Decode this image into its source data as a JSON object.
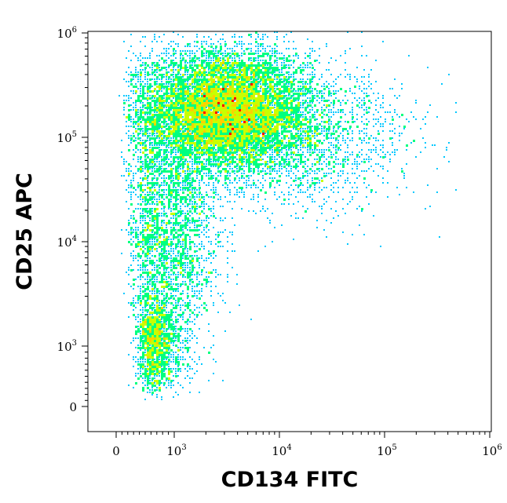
{
  "chart_data": {
    "type": "scatter",
    "style": "flow-cytometry density dot plot (biexponential axes), color = event density: blue low, cyan, green, yellow, red high",
    "xlabel": "CD134 FITC",
    "ylabel": "CD25 APC",
    "x_ticks": [
      {
        "base": "0",
        "exp": ""
      },
      {
        "base": "10",
        "exp": "3"
      },
      {
        "base": "10",
        "exp": "4"
      },
      {
        "base": "10",
        "exp": "5"
      },
      {
        "base": "10",
        "exp": "6"
      }
    ],
    "y_ticks": [
      {
        "base": "0",
        "exp": ""
      },
      {
        "base": "10",
        "exp": "3"
      },
      {
        "base": "10",
        "exp": "4"
      },
      {
        "base": "10",
        "exp": "5"
      },
      {
        "base": "10",
        "exp": "6"
      }
    ],
    "xlim": [
      0,
      1000000
    ],
    "ylim": [
      0,
      1000000
    ],
    "grid": false,
    "density_colors": [
      "#0000ff",
      "#00c8ff",
      "#00ff80",
      "#c8ff00",
      "#ffd000",
      "#ff0000"
    ],
    "populations": [
      {
        "x_center": 3000,
        "y_center": 180000,
        "x_spread_decades": 0.42,
        "y_spread_decades": 0.3,
        "events": 9000,
        "peak_density": 1.0
      },
      {
        "x_center": 700,
        "y_center": 1100,
        "x_spread_decades": 0.12,
        "y_spread_decades": 0.25,
        "events": 1400,
        "peak_density": 0.6
      },
      {
        "x_center": 900,
        "y_center": 12000,
        "x_spread_decades": 0.25,
        "y_spread_decades": 0.55,
        "events": 2500,
        "peak_density": 0.25
      },
      {
        "x_center": 20000,
        "y_center": 100000,
        "x_spread_decades": 0.5,
        "y_spread_decades": 0.35,
        "events": 1500,
        "peak_density": 0.15
      }
    ]
  }
}
